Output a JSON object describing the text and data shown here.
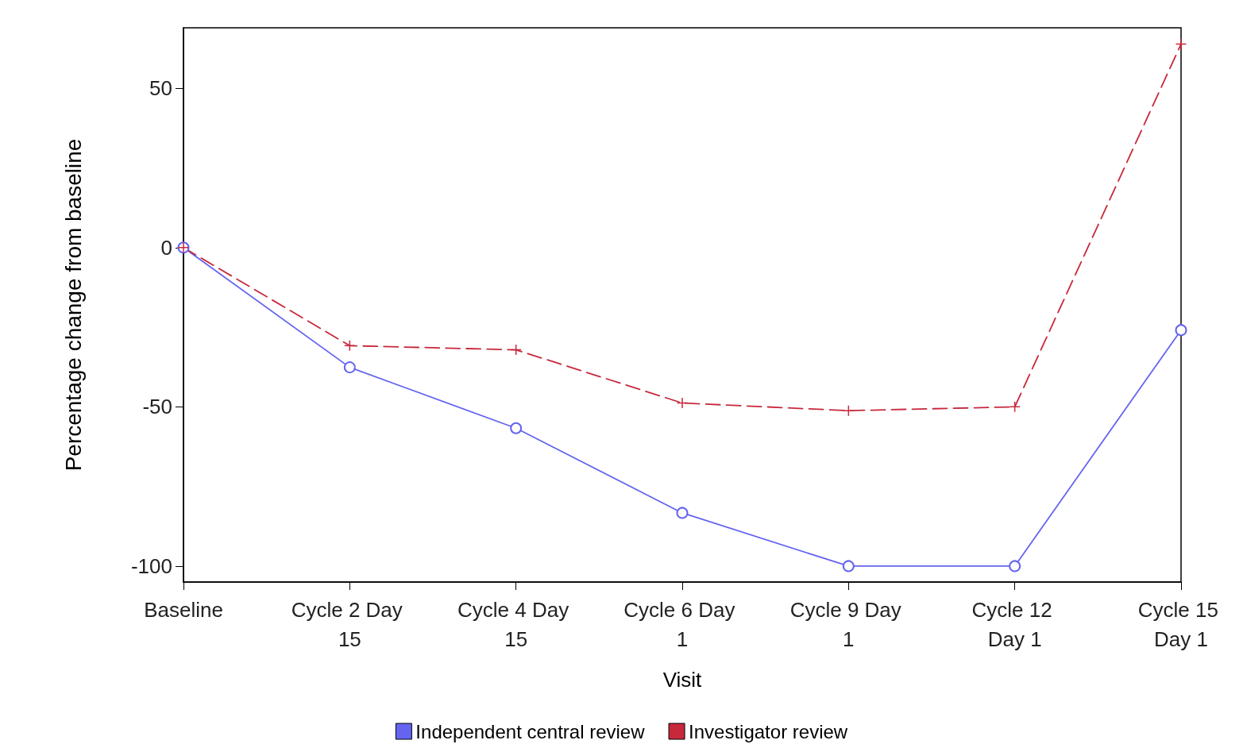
{
  "chart_data": {
    "type": "line",
    "xlabel": "Visit",
    "ylabel": "Percentage change from baseline",
    "categories": [
      "Baseline",
      "Cycle 2 Day 15",
      "Cycle 4 Day 15",
      "Cycle 6 Day 1",
      "Cycle 9 Day 1",
      "Cycle 12 Day 1",
      "Cycle 15 Day 1"
    ],
    "series": [
      {
        "name": "Independent central review",
        "color": "#6464f0",
        "marker": "circle",
        "line_style": "solid",
        "values": [
          0,
          -37.6,
          -56.7,
          -83.3,
          -100,
          -100,
          -25.9
        ]
      },
      {
        "name": "Investigator review",
        "color": "#c8283c",
        "marker": "cross",
        "line_style": "dashed",
        "values": [
          0,
          -30.8,
          -32.1,
          -48.8,
          -51.2,
          -50,
          63.9
        ]
      }
    ],
    "ylim": [
      -105,
      69
    ],
    "yticks": [
      -100,
      -50,
      0,
      50
    ],
    "grid": false,
    "legend": "bottom"
  }
}
